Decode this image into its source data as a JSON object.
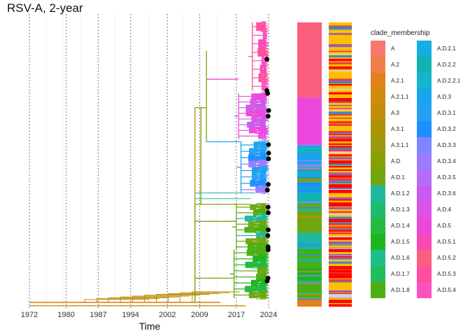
{
  "chart_data": {
    "type": "phylogenetic-tree",
    "title": "RSV-A, 2-year",
    "xlabel": "Time",
    "x_ticks": [
      1972,
      1980,
      1987,
      1994,
      2002,
      2009,
      2017,
      2024
    ],
    "xlim": [
      1972,
      2024
    ],
    "grid": "vertical dotted lines at tick years",
    "legend": {
      "title": "clade_membership",
      "placement": "right",
      "entries": [
        {
          "name": "A",
          "color": "#F8766D"
        },
        {
          "name": "A.2",
          "color": "#F17F4C"
        },
        {
          "name": "A.2.1",
          "color": "#E0811A"
        },
        {
          "name": "A.2.1.1",
          "color": "#D08A0C"
        },
        {
          "name": "A.3",
          "color": "#C08E0B"
        },
        {
          "name": "A.3.1",
          "color": "#AC9300"
        },
        {
          "name": "A.3.1.1",
          "color": "#9A9A0C"
        },
        {
          "name": "A.D",
          "color": "#86A000"
        },
        {
          "name": "A.D.1",
          "color": "#6FA610"
        },
        {
          "name": "A.D.1.2",
          "color": "#1FB89C"
        },
        {
          "name": "A.D.1.3",
          "color": "#1CBB6E"
        },
        {
          "name": "A.D.1.4",
          "color": "#22BB3F"
        },
        {
          "name": "A.D.1.5",
          "color": "#1EB41E"
        },
        {
          "name": "A.D.1.6",
          "color": "#1DBF86"
        },
        {
          "name": "A.D.1.7",
          "color": "#1FBD5B"
        },
        {
          "name": "A.D.1.8",
          "color": "#4DAE12"
        },
        {
          "name": "A.D.2.1",
          "color": "#13AEE6"
        },
        {
          "name": "A.D.2.2",
          "color": "#10B3B0"
        },
        {
          "name": "A.D.2.2.1",
          "color": "#12B7CF"
        },
        {
          "name": "A.D.3",
          "color": "#1AA3EF"
        },
        {
          "name": "A.D.3.1",
          "color": "#26A0F2"
        },
        {
          "name": "A.D.3.2",
          "color": "#1E8FFF"
        },
        {
          "name": "A.D.3.3",
          "color": "#7D86FF"
        },
        {
          "name": "A.D.3.4",
          "color": "#9C7CFF"
        },
        {
          "name": "A.D.3.5",
          "color": "#B36EF7"
        },
        {
          "name": "A.D.3.6",
          "color": "#C95AF0"
        },
        {
          "name": "A.D.4",
          "color": "#DC52E8"
        },
        {
          "name": "A.D.5",
          "color": "#EC47DC"
        },
        {
          "name": "A.D.5.1",
          "color": "#FA49B7"
        },
        {
          "name": "A.D.5.2",
          "color": "#FC5E7E"
        },
        {
          "name": "A.D.5.3",
          "color": "#FF4F9C"
        },
        {
          "name": "A.D.5.4",
          "color": "#FF50C0"
        }
      ]
    },
    "clade_blocks": [
      {
        "clade": "A.D.5.2",
        "from": 0.0,
        "to": 0.265
      },
      {
        "clade": "A.D.5",
        "from": 0.265,
        "to": 0.43
      },
      {
        "clade": "A.D.3",
        "from": 0.43,
        "to": 0.5
      },
      {
        "clade": "A.D.3.4",
        "from": 0.5,
        "to": 0.52
      },
      {
        "clade": "A.D.3",
        "from": 0.52,
        "to": 0.56
      },
      {
        "clade": "A.D.3.2",
        "from": 0.56,
        "to": 0.6
      },
      {
        "clade": "A.D.2.2",
        "from": 0.6,
        "to": 0.635
      },
      {
        "clade": "A.D.1",
        "from": 0.635,
        "to": 0.74
      },
      {
        "clade": "A.D.1.2",
        "from": 0.74,
        "to": 0.8
      },
      {
        "clade": "A.D.1.8",
        "from": 0.8,
        "to": 0.86
      },
      {
        "clade": "A.D.1.5",
        "from": 0.86,
        "to": 0.91
      },
      {
        "clade": "A.D.1.8",
        "from": 0.91,
        "to": 0.97
      },
      {
        "clade": "A.2.1",
        "from": 0.97,
        "to": 1.0
      }
    ],
    "sampled_tips_2024": [
      0.13,
      0.24,
      0.25,
      0.31,
      0.33,
      0.43,
      0.46,
      0.48,
      0.57,
      0.59,
      0.65,
      0.67,
      0.73,
      0.75,
      0.79,
      0.8,
      0.9,
      0.91
    ]
  }
}
